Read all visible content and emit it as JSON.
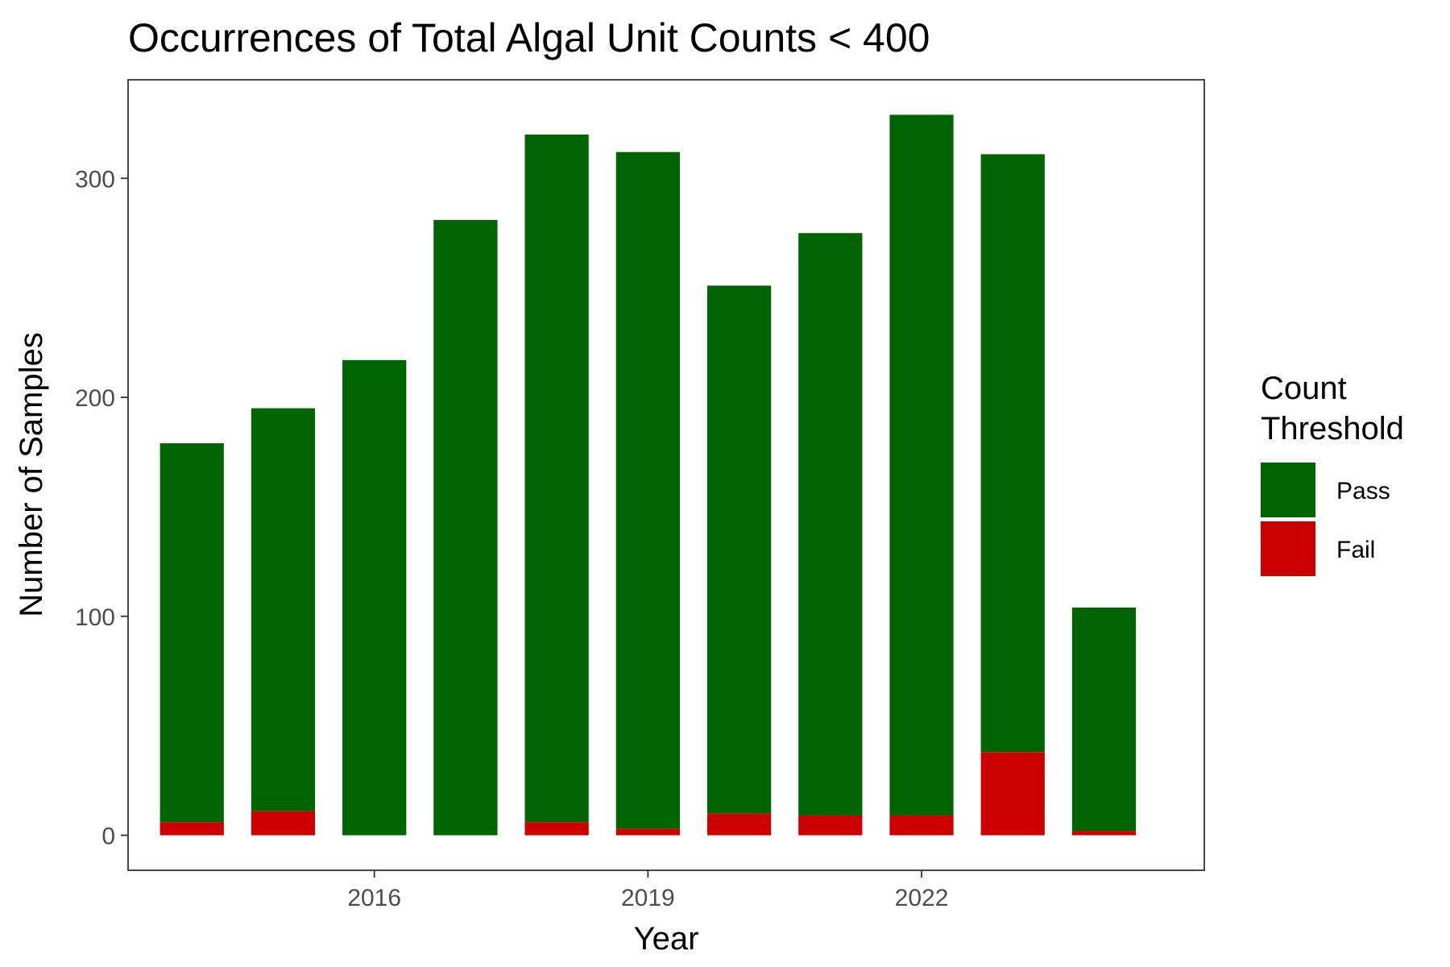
{
  "chart_data": {
    "type": "bar",
    "stacked": true,
    "title": "Occurrences of Total Algal Unit Counts < 400",
    "xlabel": "Year",
    "ylabel": "Number of Samples",
    "x": [
      2014,
      2015,
      2016,
      2017,
      2018,
      2019,
      2020,
      2021,
      2022,
      2023,
      2024
    ],
    "x_ticks": [
      2016,
      2019,
      2022
    ],
    "xlim": [
      2013.3,
      2025.1
    ],
    "y_ticks": [
      0,
      100,
      200,
      300
    ],
    "ylim": [
      -16,
      345
    ],
    "grid": false,
    "legend": {
      "title_lines": [
        "Count",
        "Threshold"
      ],
      "placement": "right"
    },
    "series": [
      {
        "name": "Pass",
        "color": "#006400",
        "values": [
          173,
          184,
          217,
          281,
          314,
          309,
          241,
          266,
          320,
          273,
          102
        ]
      },
      {
        "name": "Fail",
        "color": "#cc0000",
        "values": [
          6,
          11,
          0,
          0,
          6,
          3,
          10,
          9,
          9,
          38,
          2
        ]
      }
    ]
  }
}
